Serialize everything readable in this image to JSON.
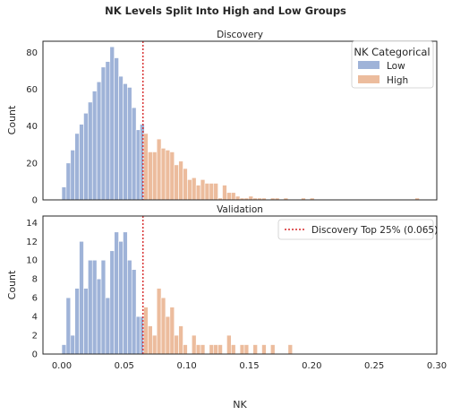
{
  "title": "NK Levels Split Into High and Low Groups",
  "threshold": 0.065,
  "chart_data": [
    {
      "type": "bar",
      "title": "Discovery",
      "xlabel": "",
      "ylabel": "Count",
      "xlim": [
        -0.015,
        0.3
      ],
      "ylim": [
        0,
        86
      ],
      "yticks": [
        "0",
        "20",
        "40",
        "60",
        "80"
      ],
      "bin_width": 0.0035,
      "legend": {
        "title": "NK Categorical",
        "placement": "top-right",
        "entries": [
          {
            "label": "Low",
            "color": "#9fb3d8"
          },
          {
            "label": "High",
            "color": "#ecbc9d"
          }
        ]
      },
      "series": [
        {
          "name": "Low",
          "x": [
            0.0018,
            0.0053,
            0.0088,
            0.0123,
            0.0158,
            0.0193,
            0.0228,
            0.0263,
            0.0298,
            0.0333,
            0.0368,
            0.0403,
            0.0438,
            0.0473,
            0.0508,
            0.0543,
            0.0578,
            0.0613,
            0.0644
          ],
          "values": [
            7,
            20,
            27,
            36,
            41,
            47,
            53,
            59,
            64,
            72,
            75,
            83,
            77,
            67,
            63,
            61,
            50,
            38,
            41
          ]
        },
        {
          "name": "High",
          "x": [
            0.0673,
            0.0708,
            0.0743,
            0.0778,
            0.0813,
            0.0848,
            0.0883,
            0.0918,
            0.0953,
            0.0988,
            0.1023,
            0.1058,
            0.1093,
            0.1128,
            0.1163,
            0.1198,
            0.1233,
            0.1268,
            0.1303,
            0.1338,
            0.1373,
            0.1408,
            0.1443,
            0.1478,
            0.1513,
            0.1548,
            0.1583,
            0.1618,
            0.1653,
            0.1688,
            0.1723,
            0.1793,
            0.1898,
            0.1933,
            0.2003,
            0.2843
          ],
          "values": [
            36,
            26,
            26,
            33,
            28,
            27,
            26,
            19,
            21,
            17,
            11,
            12,
            8,
            11,
            9,
            9,
            9,
            1,
            8,
            4,
            4,
            2,
            1,
            1,
            2,
            1,
            1,
            1,
            0,
            1,
            1,
            1,
            0,
            1,
            1,
            1
          ]
        }
      ]
    },
    {
      "type": "bar",
      "title": "Validation",
      "xlabel": "NK",
      "ylabel": "Count",
      "xlim": [
        -0.015,
        0.3
      ],
      "ylim": [
        0,
        14.7
      ],
      "xticks": [
        "0.00",
        "0.05",
        "0.10",
        "0.15",
        "0.20",
        "0.25",
        "0.30"
      ],
      "yticks": [
        "0",
        "2",
        "4",
        "6",
        "8",
        "10",
        "12",
        "14"
      ],
      "bin_width": 0.0035,
      "legend": {
        "placement": "top-right",
        "entries": [
          {
            "label": "Discovery Top 25% (0.065)",
            "color": "#d62728",
            "style": "dotted"
          }
        ]
      },
      "series": [
        {
          "name": "Low",
          "x": [
            0.0018,
            0.0053,
            0.0088,
            0.0123,
            0.0158,
            0.0193,
            0.0228,
            0.0263,
            0.0298,
            0.0333,
            0.0368,
            0.0403,
            0.0438,
            0.0473,
            0.0508,
            0.0543,
            0.0578,
            0.0613,
            0.0644
          ],
          "values": [
            1,
            6,
            2,
            7,
            12,
            7,
            10,
            10,
            8,
            10,
            6,
            11,
            13,
            12,
            13,
            10,
            9,
            4,
            4
          ],
          "zero_x": []
        },
        {
          "name": "High",
          "x": [
            0.0673,
            0.0708,
            0.0743,
            0.0778,
            0.0813,
            0.0848,
            0.0883,
            0.0918,
            0.0953,
            0.0988,
            0.1023,
            0.1058,
            0.1093,
            0.1128,
            0.1163,
            0.1198,
            0.1233,
            0.1268,
            0.1303,
            0.1338,
            0.1373,
            0.1408,
            0.1443,
            0.1478,
            0.1513,
            0.1548,
            0.1583,
            0.1618,
            0.1653,
            0.1688,
            0.1723,
            0.1793,
            0.1828
          ],
          "values": [
            5,
            3,
            2,
            7,
            6,
            4,
            5,
            2,
            3,
            1,
            0,
            2,
            1,
            1,
            0,
            1,
            1,
            1,
            0,
            2,
            1,
            0,
            1,
            1,
            0,
            1,
            0,
            1,
            0,
            1,
            0,
            0,
            1
          ]
        }
      ]
    }
  ]
}
